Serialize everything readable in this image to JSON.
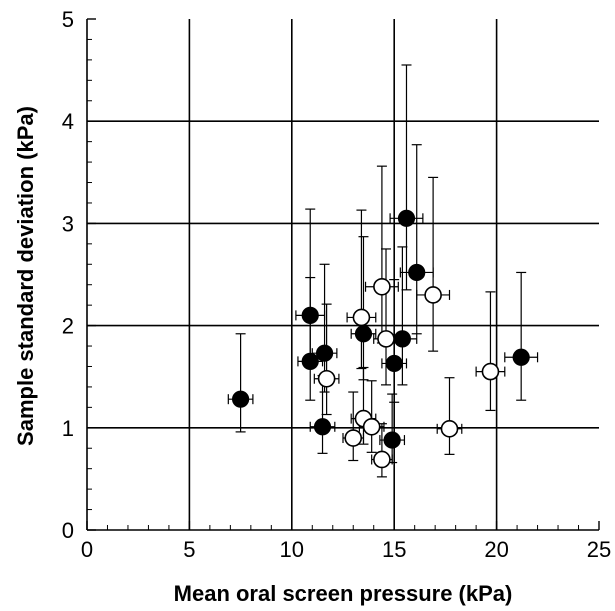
{
  "chart_data": {
    "type": "scatter",
    "xlabel": "Mean oral screen pressure (kPa)",
    "ylabel": "Sample standard deviation (kPa)",
    "xlim": [
      0,
      25
    ],
    "ylim": [
      0,
      5
    ],
    "x_ticks": [
      "0",
      "5",
      "10",
      "15",
      "20",
      "25"
    ],
    "y_ticks": [
      "0",
      "1",
      "2",
      "3",
      "4",
      "5"
    ],
    "grid": true,
    "series": [
      {
        "marker": "filled-circle",
        "points": [
          {
            "x": 7.5,
            "y": 1.28,
            "xerr": 0.6,
            "yerr_low": 0.32,
            "yerr_high": 0.64
          },
          {
            "x": 10.9,
            "y": 2.1,
            "xerr": 0.7,
            "yerr_low": 0.5,
            "yerr_high": 1.04
          },
          {
            "x": 10.9,
            "y": 1.65,
            "xerr": 0.6,
            "yerr_low": 0.38,
            "yerr_high": 0.82
          },
          {
            "x": 11.6,
            "y": 1.73,
            "xerr": 0.6,
            "yerr_low": 0.38,
            "yerr_high": 0.87
          },
          {
            "x": 11.5,
            "y": 1.01,
            "xerr": 0.6,
            "yerr_low": 0.26,
            "yerr_high": 0.5
          },
          {
            "x": 13.5,
            "y": 1.92,
            "xerr": 0.6,
            "yerr_low": 0.45,
            "yerr_high": 0.95
          },
          {
            "x": 15.6,
            "y": 3.05,
            "xerr": 0.8,
            "yerr_low": 0.7,
            "yerr_high": 1.5
          },
          {
            "x": 16.1,
            "y": 2.52,
            "xerr": 0.8,
            "yerr_low": 0.6,
            "yerr_high": 1.25
          },
          {
            "x": 15.4,
            "y": 1.87,
            "xerr": 0.7,
            "yerr_low": 0.45,
            "yerr_high": 0.9
          },
          {
            "x": 15.0,
            "y": 1.63,
            "xerr": 0.6,
            "yerr_low": 0.38,
            "yerr_high": 0.82
          },
          {
            "x": 14.9,
            "y": 0.88,
            "xerr": 0.6,
            "yerr_low": 0.22,
            "yerr_high": 0.45
          },
          {
            "x": 21.2,
            "y": 1.69,
            "xerr": 0.8,
            "yerr_low": 0.42,
            "yerr_high": 0.83
          }
        ]
      },
      {
        "marker": "open-circle",
        "points": [
          {
            "x": 13.4,
            "y": 2.08,
            "xerr": 0.7,
            "yerr_low": 0.5,
            "yerr_high": 1.05
          },
          {
            "x": 14.4,
            "y": 2.38,
            "xerr": 0.8,
            "yerr_low": 0.55,
            "yerr_high": 1.18
          },
          {
            "x": 14.6,
            "y": 1.87,
            "xerr": 0.6,
            "yerr_low": 0.45,
            "yerr_high": 0.88
          },
          {
            "x": 16.9,
            "y": 2.3,
            "xerr": 0.8,
            "yerr_low": 0.55,
            "yerr_high": 1.15
          },
          {
            "x": 11.7,
            "y": 1.48,
            "xerr": 0.6,
            "yerr_low": 0.35,
            "yerr_high": 0.73
          },
          {
            "x": 13.5,
            "y": 1.09,
            "xerr": 0.6,
            "yerr_low": 0.25,
            "yerr_high": 0.5
          },
          {
            "x": 13.0,
            "y": 0.9,
            "xerr": 0.5,
            "yerr_low": 0.22,
            "yerr_high": 0.45
          },
          {
            "x": 13.9,
            "y": 1.01,
            "xerr": 0.6,
            "yerr_low": 0.25,
            "yerr_high": 0.45
          },
          {
            "x": 14.4,
            "y": 0.69,
            "xerr": 0.5,
            "yerr_low": 0.17,
            "yerr_high": 0.35
          },
          {
            "x": 17.7,
            "y": 0.99,
            "xerr": 0.6,
            "yerr_low": 0.25,
            "yerr_high": 0.5
          },
          {
            "x": 19.7,
            "y": 1.55,
            "xerr": 0.7,
            "yerr_low": 0.38,
            "yerr_high": 0.78
          }
        ]
      }
    ]
  }
}
